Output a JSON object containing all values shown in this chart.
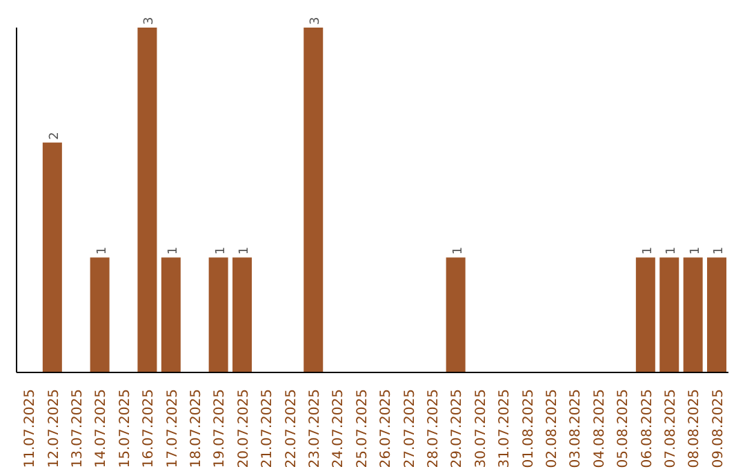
{
  "chart_data": {
    "type": "bar",
    "categories": [
      "11.07.2025",
      "12.07.2025",
      "13.07.2025",
      "14.07.2025",
      "15.07.2025",
      "16.07.2025",
      "17.07.2025",
      "18.07.2025",
      "19.07.2025",
      "20.07.2025",
      "21.07.2025",
      "22.07.2025",
      "23.07.2025",
      "24.07.2025",
      "25.07.2025",
      "26.07.2025",
      "27.07.2025",
      "28.07.2025",
      "29.07.2025",
      "30.07.2025",
      "31.07.2025",
      "01.08.2025",
      "02.08.2025",
      "03.08.2025",
      "04.08.2025",
      "05.08.2025",
      "06.08.2025",
      "07.08.2025",
      "08.08.2025",
      "09.08.2025"
    ],
    "values": [
      0,
      2,
      0,
      1,
      0,
      3,
      1,
      0,
      1,
      1,
      0,
      0,
      3,
      0,
      0,
      0,
      0,
      0,
      1,
      0,
      0,
      0,
      0,
      0,
      0,
      0,
      1,
      1,
      1,
      1
    ],
    "value_labels": [
      null,
      "2",
      null,
      "1",
      null,
      "3",
      "1",
      null,
      "1",
      "1",
      null,
      null,
      "3",
      null,
      null,
      null,
      null,
      null,
      "1",
      null,
      null,
      null,
      null,
      null,
      null,
      null,
      "1",
      "1",
      "1",
      "1"
    ],
    "color": "#a0572a",
    "grid": false
  }
}
